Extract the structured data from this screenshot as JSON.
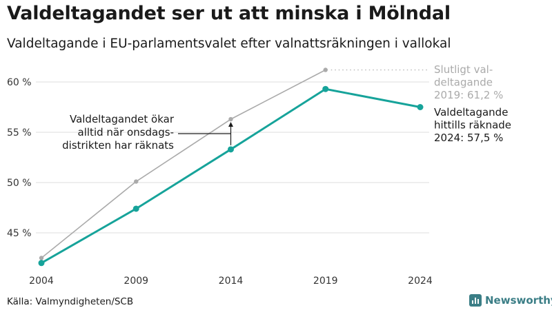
{
  "header": {
    "title": "Valdeltagandet ser ut att minska i Mölndal",
    "subtitle": "Valdeltagande i EU-parlamentsvalet efter valnattsräkningen i vallokal"
  },
  "chart_data": {
    "type": "line",
    "x": [
      "2004",
      "2009",
      "2014",
      "2019",
      "2024"
    ],
    "ylim": [
      41,
      62
    ],
    "y_ticks": [
      45,
      50,
      55,
      60
    ],
    "y_tick_labels": [
      "45 %",
      "50 %",
      "55 %",
      "60 %"
    ],
    "grid": true,
    "xlabel": "",
    "ylabel": "",
    "series": [
      {
        "key": "final",
        "color": "#aaaaaa",
        "values": [
          42.5,
          50.1,
          56.3,
          61.2,
          null
        ]
      },
      {
        "key": "counted",
        "color": "#16a39a",
        "values": [
          42.0,
          47.4,
          53.3,
          59.3,
          57.5
        ]
      }
    ],
    "annotations": {
      "final_label": [
        "Slutligt val-",
        "deltagande",
        "2019: 61,2 %"
      ],
      "counted_label": [
        "Valdeltagande",
        "hittills räknade",
        "2024: 57,5 %"
      ],
      "callout": [
        "Valdeltagandet ökar",
        "alltid när onsdags-",
        "distrikten har räknats"
      ]
    }
  },
  "footer": {
    "source": "Källa: Valmyndigheten/SCB",
    "brand": "Newsworthy",
    "brand_color": "#3b7e86",
    "brand_icon": "bar-chart-icon"
  }
}
